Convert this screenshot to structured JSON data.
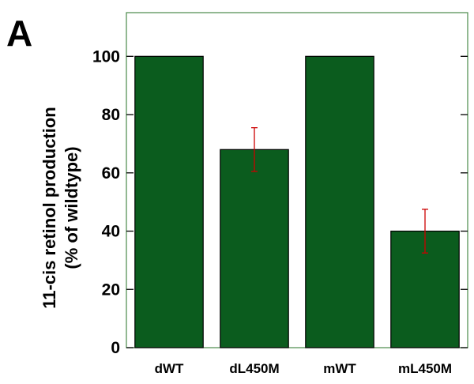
{
  "panel_label": "A",
  "chart_data": {
    "type": "bar",
    "title": "",
    "xlabel": "",
    "ylabel_lines": [
      "11-cis retinol production",
      "(% of wildtype)"
    ],
    "categories": [
      "dWT",
      "dL450M",
      "mWT",
      "mL450M"
    ],
    "values": [
      100,
      68,
      100,
      40
    ],
    "error_bars": [
      null,
      7.5,
      null,
      7.5
    ],
    "ylim": [
      0,
      115
    ],
    "yticks": [
      0,
      20,
      40,
      60,
      80,
      100
    ],
    "grid": false,
    "colors": {
      "bar_fill": "#0b5c1e",
      "bar_stroke": "#000000",
      "error_bar": "#cc0000",
      "frame": "#4a8a4a",
      "tick": "#000000"
    }
  }
}
